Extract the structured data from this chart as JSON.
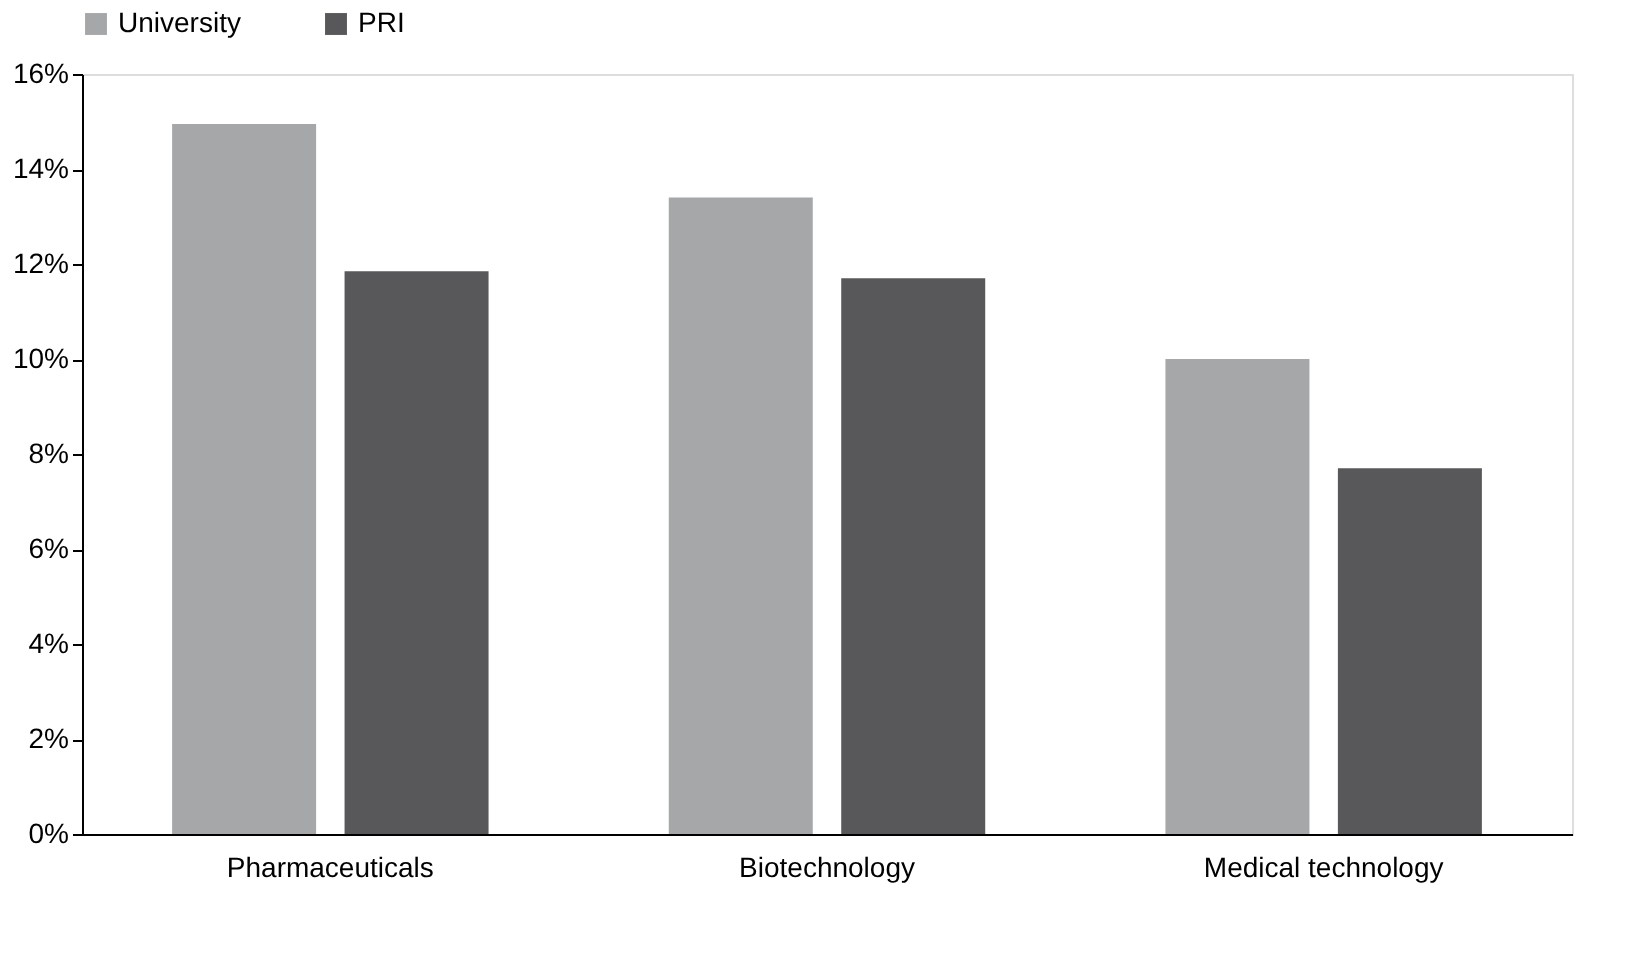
{
  "chart_data": {
    "type": "bar",
    "categories": [
      "Pharmaceuticals",
      "Biotechnology",
      "Medical technology"
    ],
    "series": [
      {
        "name": "University",
        "color": "#a6a7a9",
        "values": [
          14.95,
          13.4,
          10.0
        ]
      },
      {
        "name": "PRI",
        "color": "#58585a",
        "values": [
          11.85,
          11.7,
          7.7
        ]
      }
    ],
    "ylim": [
      0,
      16
    ],
    "yticks": [
      {
        "value": 0,
        "label": "0%"
      },
      {
        "value": 2,
        "label": "2%"
      },
      {
        "value": 4,
        "label": "4%"
      },
      {
        "value": 6,
        "label": "6%"
      },
      {
        "value": 8,
        "label": "8%"
      },
      {
        "value": 10,
        "label": "10%"
      },
      {
        "value": 12,
        "label": "12%"
      },
      {
        "value": 14,
        "label": "14%"
      },
      {
        "value": 16,
        "label": "16%"
      }
    ],
    "grid": false,
    "legend": "top"
  }
}
